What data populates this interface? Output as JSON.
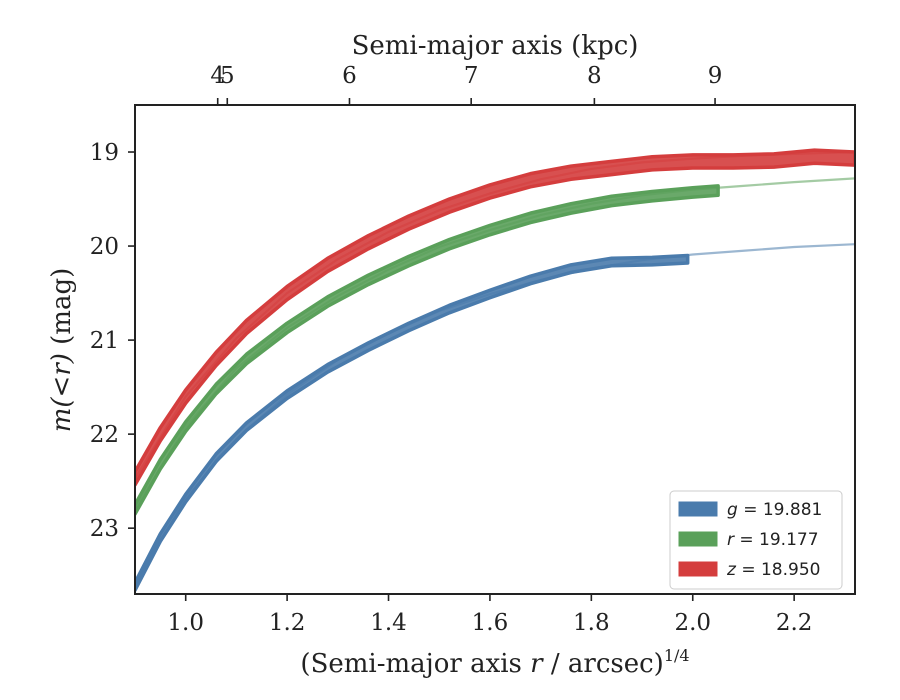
{
  "chart_data": {
    "type": "line",
    "xlabel_bottom": "(Semi-major axis",
    "xlabel_bottom_var": "r",
    "xlabel_bottom_unit": "/ arcsec)",
    "xlabel_bottom_exp": "1/4",
    "xlabel_top": "Semi-major axis (kpc)",
    "ylabel_var": "m(<r)",
    "ylabel_unit": "(mag)",
    "xlim": [
      0.9,
      2.32
    ],
    "ylim": [
      23.7,
      18.5
    ],
    "y_inverted": true,
    "x_ticks": [
      1.0,
      1.2,
      1.4,
      1.6,
      1.8,
      2.0,
      2.2
    ],
    "x_tick_labels": [
      "1.0",
      "1.2",
      "1.4",
      "1.6",
      "1.8",
      "2.0",
      "2.2"
    ],
    "y_ticks": [
      19,
      20,
      21,
      22,
      23
    ],
    "y_tick_labels": [
      "19",
      "20",
      "21",
      "22",
      "23"
    ],
    "top_ticks": [
      {
        "label": "4",
        "x": 1.0
      },
      {
        "label": "5",
        "x": 1.082
      },
      {
        "label": "6",
        "x": 1.323
      },
      {
        "label": "7",
        "x": 1.563
      },
      {
        "label": "8",
        "x": 1.806
      },
      {
        "label": "9",
        "x": 2.044
      }
    ],
    "grid": false,
    "legend_position": "bottom-right",
    "series": [
      {
        "name": "g",
        "legend_value": "= 19.881",
        "color": "#4a7bac",
        "data": [
          [
            0.9,
            23.62
          ],
          [
            0.95,
            23.1
          ],
          [
            1.0,
            22.68
          ],
          [
            1.06,
            22.25
          ],
          [
            1.12,
            21.92
          ],
          [
            1.2,
            21.58
          ],
          [
            1.28,
            21.3
          ],
          [
            1.36,
            21.07
          ],
          [
            1.44,
            20.86
          ],
          [
            1.52,
            20.67
          ],
          [
            1.6,
            20.51
          ],
          [
            1.68,
            20.36
          ],
          [
            1.76,
            20.24
          ],
          [
            1.84,
            20.17
          ],
          [
            1.92,
            20.16
          ],
          [
            1.99,
            20.14
          ]
        ],
        "model": [
          [
            0.9,
            23.62
          ],
          [
            1.0,
            22.68
          ],
          [
            1.1,
            22.05
          ],
          [
            1.2,
            21.58
          ],
          [
            1.3,
            21.21
          ],
          [
            1.4,
            20.93
          ],
          [
            1.5,
            20.69
          ],
          [
            1.6,
            20.51
          ],
          [
            1.7,
            20.36
          ],
          [
            1.8,
            20.24
          ],
          [
            1.9,
            20.15
          ],
          [
            2.0,
            20.09
          ],
          [
            2.1,
            20.05
          ],
          [
            2.2,
            20.01
          ],
          [
            2.32,
            19.98
          ]
        ],
        "band_width": 0.04
      },
      {
        "name": "r",
        "legend_value": "= 19.177",
        "color": "#5aa05a",
        "data": [
          [
            0.9,
            22.8
          ],
          [
            0.95,
            22.32
          ],
          [
            1.0,
            21.92
          ],
          [
            1.06,
            21.52
          ],
          [
            1.12,
            21.2
          ],
          [
            1.2,
            20.87
          ],
          [
            1.28,
            20.59
          ],
          [
            1.36,
            20.36
          ],
          [
            1.44,
            20.16
          ],
          [
            1.52,
            19.98
          ],
          [
            1.6,
            19.83
          ],
          [
            1.68,
            19.7
          ],
          [
            1.76,
            19.6
          ],
          [
            1.84,
            19.52
          ],
          [
            1.92,
            19.47
          ],
          [
            2.0,
            19.43
          ],
          [
            2.05,
            19.41
          ]
        ],
        "model": [
          [
            0.9,
            22.8
          ],
          [
            1.0,
            21.92
          ],
          [
            1.1,
            21.3
          ],
          [
            1.2,
            20.87
          ],
          [
            1.3,
            20.53
          ],
          [
            1.4,
            20.25
          ],
          [
            1.5,
            20.01
          ],
          [
            1.6,
            19.83
          ],
          [
            1.7,
            19.67
          ],
          [
            1.8,
            19.55
          ],
          [
            1.9,
            19.46
          ],
          [
            2.0,
            19.4
          ],
          [
            2.1,
            19.36
          ],
          [
            2.2,
            19.32
          ],
          [
            2.32,
            19.28
          ]
        ],
        "band_width": 0.05
      },
      {
        "name": "z",
        "legend_value": "= 18.950",
        "color": "#d43d3d",
        "data": [
          [
            0.9,
            22.47
          ],
          [
            0.95,
            22.0
          ],
          [
            1.0,
            21.6
          ],
          [
            1.06,
            21.2
          ],
          [
            1.12,
            20.86
          ],
          [
            1.2,
            20.5
          ],
          [
            1.28,
            20.2
          ],
          [
            1.36,
            19.96
          ],
          [
            1.44,
            19.75
          ],
          [
            1.52,
            19.57
          ],
          [
            1.6,
            19.42
          ],
          [
            1.68,
            19.3
          ],
          [
            1.76,
            19.22
          ],
          [
            1.84,
            19.17
          ],
          [
            1.92,
            19.12
          ],
          [
            2.0,
            19.1
          ],
          [
            2.08,
            19.1
          ],
          [
            2.16,
            19.09
          ],
          [
            2.24,
            19.05
          ],
          [
            2.32,
            19.07
          ]
        ],
        "model": [
          [
            0.9,
            22.47
          ],
          [
            1.0,
            21.6
          ],
          [
            1.1,
            20.98
          ],
          [
            1.2,
            20.5
          ],
          [
            1.3,
            20.14
          ],
          [
            1.4,
            19.85
          ],
          [
            1.5,
            19.62
          ],
          [
            1.6,
            19.44
          ],
          [
            1.7,
            19.29
          ],
          [
            1.8,
            19.18
          ],
          [
            1.9,
            19.11
          ],
          [
            2.0,
            19.07
          ],
          [
            2.1,
            19.04
          ],
          [
            2.2,
            19.02
          ],
          [
            2.32,
            19.0
          ]
        ],
        "band_width": 0.07
      }
    ]
  }
}
